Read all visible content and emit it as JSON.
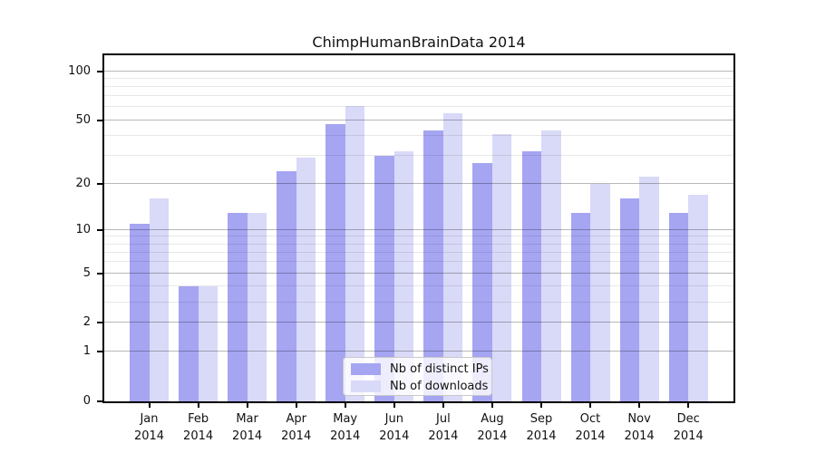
{
  "title": "ChimpHumanBrainData 2014",
  "chart_data": {
    "type": "bar",
    "title": "ChimpHumanBrainData 2014",
    "categories": [
      "Jan",
      "Feb",
      "Mar",
      "Apr",
      "May",
      "Jun",
      "Jul",
      "Aug",
      "Sep",
      "Oct",
      "Nov",
      "Dec"
    ],
    "x_year_label": "2014",
    "series": [
      {
        "name": "Nb of distinct IPs",
        "color": "#a5a5f2",
        "values": [
          11,
          4,
          13,
          24,
          47,
          30,
          43,
          27,
          32,
          13,
          16,
          13
        ]
      },
      {
        "name": "Nb of downloads",
        "color": "#d9d9f8",
        "values": [
          16,
          4,
          13,
          29,
          61,
          32,
          55,
          41,
          43,
          20,
          22,
          17
        ]
      }
    ],
    "yticks": [
      0,
      1,
      2,
      5,
      10,
      20,
      50,
      100
    ],
    "y_scale": "log10(1+value)",
    "ylim": [
      0,
      125
    ],
    "xlabel": "",
    "ylabel": "",
    "grid": true,
    "legend_position": "lower center"
  },
  "colors": {
    "bar_distinct_ips": "#a5a5f2",
    "bar_downloads": "#d9d9f8",
    "major_grid": "rgba(0,0,0,0.28)",
    "minor_grid": "rgba(0,0,0,0.09)",
    "spine": "#000000",
    "text": "#111111",
    "legend_border": "#c9c9c9",
    "legend_bg": "rgba(255,255,255,0.8)"
  }
}
